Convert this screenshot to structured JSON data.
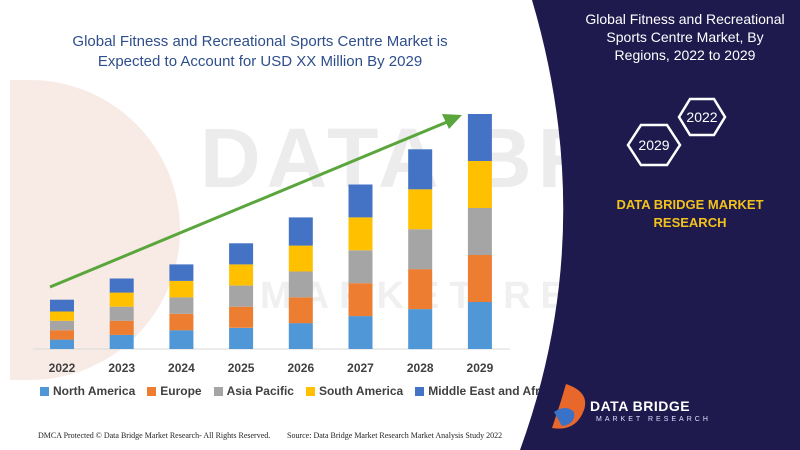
{
  "title": "Global Fitness and Recreational Sports Centre Market is Expected to Account for USD XX Million By 2029",
  "panel": {
    "title": "Global Fitness and Recreational Sports Centre Market, By Regions, 2022 to 2029",
    "hex_left": "2029",
    "hex_right": "2022",
    "brand": "DATA BRIDGE MARKET RESEARCH",
    "logo_name": "DATA BRIDGE",
    "logo_sub": "MARKET RESEARCH"
  },
  "watermark": {
    "line1": "DATA BRIDGE",
    "line2": "MARKET RESEARCH"
  },
  "footer": {
    "left": "DMCA Protected © Data Bridge Market Research- All Rights Reserved.",
    "right": "Source: Data Bridge Market Research Market Analysis Study 2022"
  },
  "colors": {
    "north_america": "#4f97d6",
    "europe": "#ed7d31",
    "asia_pacific": "#a5a5a5",
    "south_america": "#ffc000",
    "middle_east_africa": "#4472c4",
    "arrow": "#5aa63c",
    "panel": "#1e1a4d"
  },
  "chart_data": {
    "type": "bar",
    "stacked": true,
    "categories": [
      "2022",
      "2023",
      "2024",
      "2025",
      "2026",
      "2027",
      "2028",
      "2029"
    ],
    "ylim": [
      0,
      100
    ],
    "series": [
      {
        "name": "North America",
        "values": [
          4,
          6,
          8,
          9,
          11,
          14,
          17,
          20
        ]
      },
      {
        "name": "Europe",
        "values": [
          4,
          6,
          7,
          9,
          11,
          14,
          17,
          20
        ]
      },
      {
        "name": "Asia Pacific",
        "values": [
          4,
          6,
          7,
          9,
          11,
          14,
          17,
          20
        ]
      },
      {
        "name": "South America",
        "values": [
          4,
          6,
          7,
          9,
          11,
          14,
          17,
          20
        ]
      },
      {
        "name": "Middle East and Africa",
        "values": [
          5,
          6,
          7,
          9,
          12,
          14,
          17,
          20
        ]
      }
    ],
    "legend_position": "bottom",
    "grid": false
  }
}
